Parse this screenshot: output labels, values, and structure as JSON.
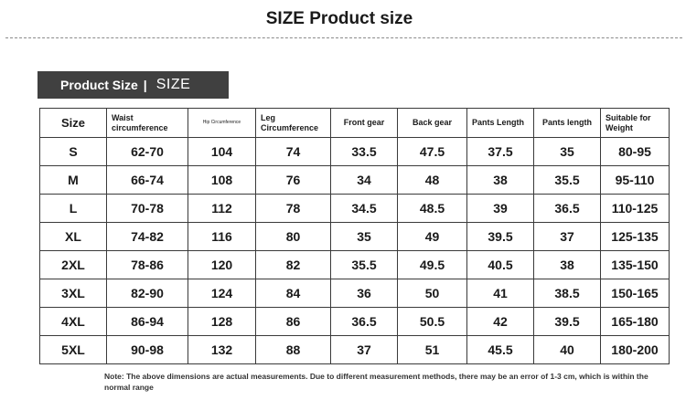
{
  "header": {
    "title": "SIZE Product size"
  },
  "banner": {
    "main": "Product Size",
    "separator": "|",
    "sub": "SIZE"
  },
  "table": {
    "headers": [
      "Size",
      "Waist circumference",
      "Hip Circumference",
      "Leg Circumference",
      "Front gear",
      "Back gear",
      "Pants Length",
      "Pants length",
      "Suitable for Weight"
    ],
    "rows": [
      [
        "S",
        "62-70",
        "104",
        "74",
        "33.5",
        "47.5",
        "37.5",
        "35",
        "80-95"
      ],
      [
        "M",
        "66-74",
        "108",
        "76",
        "34",
        "48",
        "38",
        "35.5",
        "95-110"
      ],
      [
        "L",
        "70-78",
        "112",
        "78",
        "34.5",
        "48.5",
        "39",
        "36.5",
        "110-125"
      ],
      [
        "XL",
        "74-82",
        "116",
        "80",
        "35",
        "49",
        "39.5",
        "37",
        "125-135"
      ],
      [
        "2XL",
        "78-86",
        "120",
        "82",
        "35.5",
        "49.5",
        "40.5",
        "38",
        "135-150"
      ],
      [
        "3XL",
        "82-90",
        "124",
        "84",
        "36",
        "50",
        "41",
        "38.5",
        "150-165"
      ],
      [
        "4XL",
        "86-94",
        "128",
        "86",
        "36.5",
        "50.5",
        "42",
        "39.5",
        "165-180"
      ],
      [
        "5XL",
        "90-98",
        "132",
        "88",
        "37",
        "51",
        "45.5",
        "40",
        "180-200"
      ]
    ]
  },
  "note": "Note: The above dimensions are actual measurements. Due to different measurement methods, there may be an error of 1-3 cm, which is within the normal range"
}
